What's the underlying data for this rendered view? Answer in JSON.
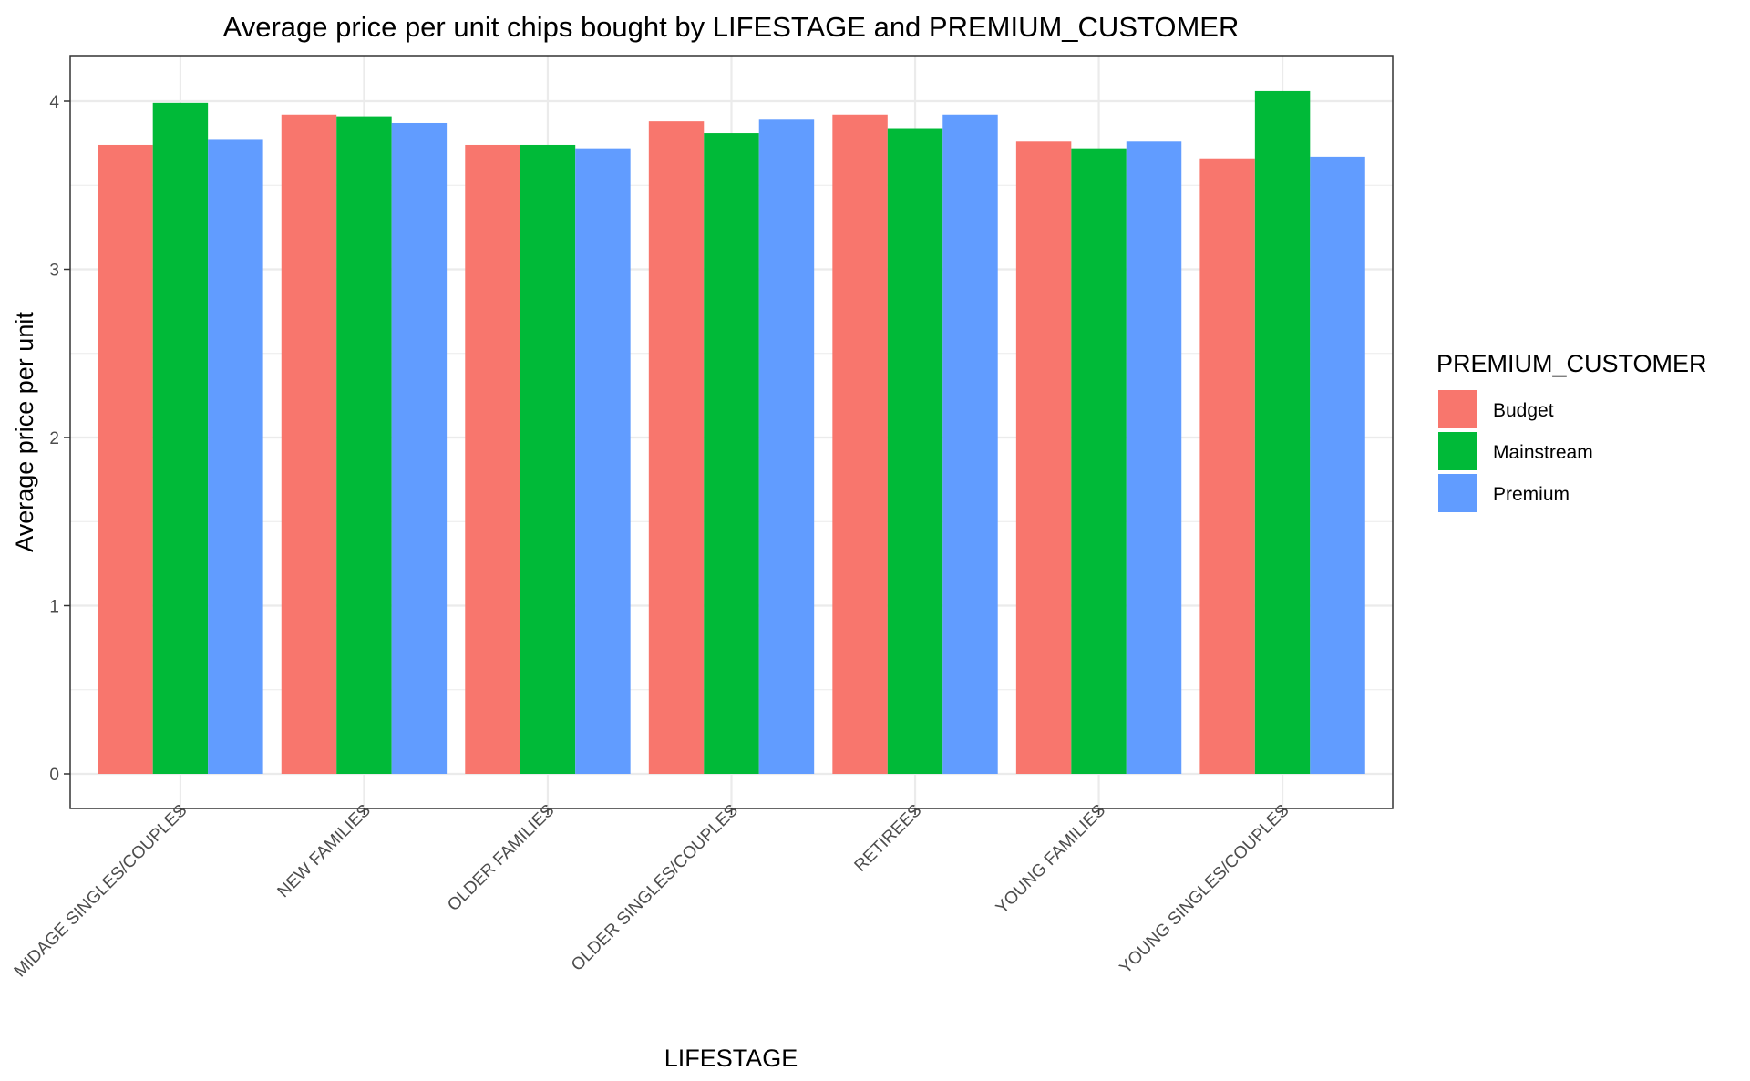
{
  "chart_data": {
    "type": "bar",
    "title": "Average price per unit chips bought by LIFESTAGE and PREMIUM_CUSTOMER",
    "xlabel": "LIFESTAGE",
    "ylabel": "Average price per unit",
    "ylim": [
      0,
      4.27
    ],
    "yticks": [
      0,
      1,
      2,
      3,
      4
    ],
    "grid": true,
    "legend": {
      "title": "PREMIUM_CUSTOMER",
      "placement": "right"
    },
    "categories": [
      "MIDAGE SINGLES/COUPLES",
      "NEW FAMILIES",
      "OLDER FAMILIES",
      "OLDER SINGLES/COUPLES",
      "RETIREES",
      "YOUNG FAMILIES",
      "YOUNG SINGLES/COUPLES"
    ],
    "series": [
      {
        "name": "Budget",
        "color": "#F8766D",
        "values": [
          3.74,
          3.92,
          3.74,
          3.88,
          3.92,
          3.76,
          3.66
        ]
      },
      {
        "name": "Mainstream",
        "color": "#00BA38",
        "values": [
          3.99,
          3.91,
          3.74,
          3.81,
          3.84,
          3.72,
          4.06
        ]
      },
      {
        "name": "Premium",
        "color": "#619CFF",
        "values": [
          3.77,
          3.87,
          3.72,
          3.89,
          3.92,
          3.76,
          3.67
        ]
      }
    ]
  }
}
